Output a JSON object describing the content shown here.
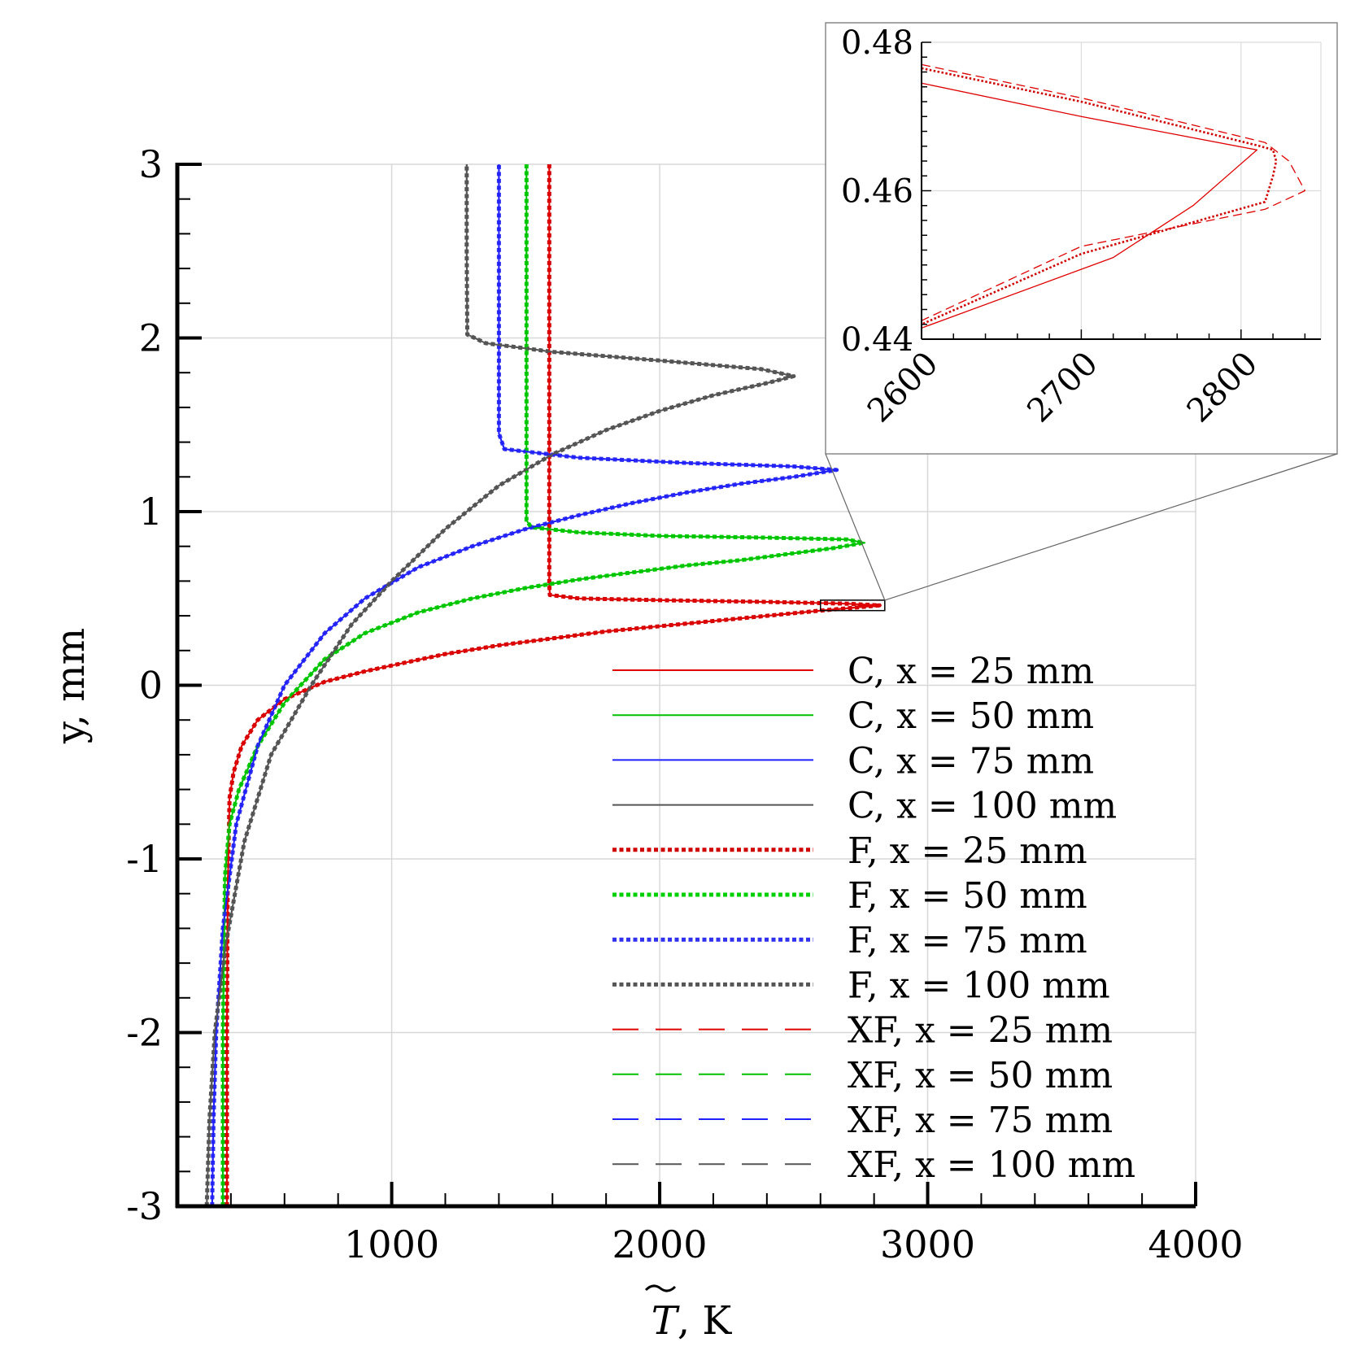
{
  "chart_data": [
    {
      "type": "line",
      "title": "",
      "xlabel": "T̃, K",
      "xlabel_symbol": "T",
      "xlabel_unit": ", K",
      "ylabel": "y, mm",
      "xlim": [
        200,
        4000
      ],
      "ylim": [
        -3,
        3
      ],
      "x_ticks": [
        1000,
        2000,
        3000,
        4000
      ],
      "x_tick_labels": [
        "1000",
        "2000",
        "3000",
        "4000"
      ],
      "y_ticks": [
        -3,
        -2,
        -1,
        0,
        1,
        2,
        3
      ],
      "y_tick_labels": [
        "-3",
        "-2",
        "-1",
        "0",
        "1",
        "2",
        "3"
      ],
      "grid": true,
      "legend_position": "bottom-right",
      "series": [
        {
          "name": "C, x = 25 mm",
          "model": "C",
          "color": "#e00000",
          "style": "solid",
          "x": [
            385,
            385,
            388,
            395,
            410,
            440,
            500,
            600,
            750,
            900,
            1050,
            1200,
            1400,
            1600,
            1800,
            2000,
            2200,
            2400,
            2600,
            2750,
            2820,
            2700,
            2400,
            2000,
            1700,
            1590,
            1588,
            1588,
            1588
          ],
          "y": [
            -3,
            -2,
            -1.2,
            -0.65,
            -0.5,
            -0.35,
            -0.2,
            -0.08,
            0.02,
            0.08,
            0.13,
            0.18,
            0.23,
            0.27,
            0.31,
            0.34,
            0.37,
            0.4,
            0.43,
            0.45,
            0.46,
            0.47,
            0.48,
            0.49,
            0.5,
            0.52,
            0.58,
            1.5,
            3
          ]
        },
        {
          "name": "C, x = 50 mm",
          "model": "C",
          "color": "#00c000",
          "style": "solid",
          "x": [
            370,
            370,
            378,
            395,
            430,
            500,
            600,
            750,
            900,
            1100,
            1300,
            1500,
            1700,
            1900,
            2100,
            2300,
            2500,
            2650,
            2760,
            2700,
            2400,
            2000,
            1700,
            1520,
            1503,
            1503,
            1503
          ],
          "y": [
            -3,
            -2,
            -1.1,
            -0.8,
            -0.6,
            -0.35,
            -0.1,
            0.15,
            0.3,
            0.42,
            0.5,
            0.56,
            0.61,
            0.65,
            0.69,
            0.72,
            0.76,
            0.79,
            0.82,
            0.84,
            0.85,
            0.86,
            0.88,
            0.91,
            0.95,
            2,
            3
          ]
        },
        {
          "name": "C, x = 75 mm",
          "model": "C",
          "color": "#2020ff",
          "style": "solid",
          "x": [
            330,
            335,
            345,
            370,
            420,
            500,
            600,
            750,
            900,
            1100,
            1300,
            1500,
            1700,
            1900,
            2100,
            2300,
            2500,
            2620,
            2660,
            2500,
            2100,
            1700,
            1420,
            1400,
            1400,
            1400
          ],
          "y": [
            -3,
            -2.5,
            -2,
            -1.4,
            -0.8,
            -0.35,
            0,
            0.3,
            0.5,
            0.68,
            0.8,
            0.9,
            0.98,
            1.05,
            1.11,
            1.16,
            1.2,
            1.23,
            1.24,
            1.26,
            1.28,
            1.31,
            1.36,
            1.45,
            2.5,
            3
          ]
        },
        {
          "name": "C, x = 100 mm",
          "model": "C",
          "color": "#555555",
          "style": "solid",
          "x": [
            310,
            320,
            340,
            380,
            450,
            550,
            700,
            850,
            1000,
            1200,
            1400,
            1600,
            1800,
            2000,
            2200,
            2400,
            2500,
            2380,
            2000,
            1600,
            1350,
            1282,
            1280,
            1280
          ],
          "y": [
            -3,
            -2.5,
            -2,
            -1.5,
            -0.9,
            -0.4,
            0,
            0.35,
            0.6,
            0.9,
            1.15,
            1.33,
            1.47,
            1.58,
            1.67,
            1.74,
            1.78,
            1.82,
            1.87,
            1.92,
            1.97,
            2.02,
            2.5,
            3
          ]
        },
        {
          "name": "F, x = 25 mm",
          "model": "F",
          "color": "#d00000",
          "style": "dotted",
          "x": [
            385,
            385,
            388,
            395,
            410,
            440,
            500,
            600,
            750,
            900,
            1050,
            1200,
            1400,
            1600,
            1800,
            2000,
            2200,
            2400,
            2600,
            2750,
            2820,
            2700,
            2400,
            2000,
            1700,
            1590,
            1588,
            1588,
            1588
          ],
          "y": [
            -3,
            -2,
            -1.2,
            -0.65,
            -0.5,
            -0.35,
            -0.2,
            -0.08,
            0.02,
            0.08,
            0.13,
            0.18,
            0.23,
            0.27,
            0.31,
            0.34,
            0.37,
            0.4,
            0.43,
            0.45,
            0.46,
            0.47,
            0.48,
            0.49,
            0.5,
            0.52,
            0.58,
            1.5,
            3
          ]
        },
        {
          "name": "F, x = 50 mm",
          "model": "F",
          "color": "#00d000",
          "style": "dotted",
          "x": [
            370,
            370,
            378,
            395,
            430,
            500,
            600,
            750,
            900,
            1100,
            1300,
            1500,
            1700,
            1900,
            2100,
            2300,
            2500,
            2650,
            2760,
            2700,
            2400,
            2000,
            1700,
            1520,
            1503,
            1503,
            1503
          ],
          "y": [
            -3,
            -2,
            -1.1,
            -0.8,
            -0.6,
            -0.35,
            -0.1,
            0.15,
            0.3,
            0.42,
            0.5,
            0.56,
            0.61,
            0.65,
            0.69,
            0.72,
            0.76,
            0.79,
            0.82,
            0.84,
            0.85,
            0.86,
            0.88,
            0.91,
            0.95,
            2,
            3
          ]
        },
        {
          "name": "F, x = 75 mm",
          "model": "F",
          "color": "#3030f0",
          "style": "dotted",
          "x": [
            330,
            335,
            345,
            370,
            420,
            500,
            600,
            750,
            900,
            1100,
            1300,
            1500,
            1700,
            1900,
            2100,
            2300,
            2500,
            2620,
            2660,
            2500,
            2100,
            1700,
            1420,
            1400,
            1400,
            1400
          ],
          "y": [
            -3,
            -2.5,
            -2,
            -1.4,
            -0.8,
            -0.35,
            0,
            0.3,
            0.5,
            0.68,
            0.8,
            0.9,
            0.98,
            1.05,
            1.11,
            1.16,
            1.2,
            1.23,
            1.24,
            1.26,
            1.28,
            1.31,
            1.36,
            1.45,
            2.5,
            3
          ]
        },
        {
          "name": "F, x = 100 mm",
          "model": "F",
          "color": "#555555",
          "style": "dotted",
          "x": [
            310,
            320,
            340,
            380,
            450,
            550,
            700,
            850,
            1000,
            1200,
            1400,
            1600,
            1800,
            2000,
            2200,
            2400,
            2500,
            2380,
            2000,
            1600,
            1350,
            1282,
            1280,
            1280
          ],
          "y": [
            -3,
            -2.5,
            -2,
            -1.5,
            -0.9,
            -0.4,
            0,
            0.35,
            0.6,
            0.9,
            1.15,
            1.33,
            1.47,
            1.58,
            1.67,
            1.74,
            1.78,
            1.82,
            1.87,
            1.92,
            1.97,
            2.02,
            2.5,
            3
          ]
        },
        {
          "name": "XF, x = 25 mm",
          "model": "XF",
          "color": "#e00000",
          "style": "dashed",
          "x": [
            385,
            385,
            388,
            395,
            410,
            440,
            500,
            600,
            750,
            900,
            1050,
            1200,
            1400,
            1600,
            1800,
            2000,
            2200,
            2400,
            2600,
            2750,
            2825,
            2700,
            2400,
            2000,
            1700,
            1590,
            1588,
            1588,
            1588
          ],
          "y": [
            -3,
            -2,
            -1.2,
            -0.65,
            -0.5,
            -0.35,
            -0.2,
            -0.08,
            0.02,
            0.08,
            0.13,
            0.18,
            0.23,
            0.27,
            0.31,
            0.34,
            0.37,
            0.4,
            0.43,
            0.45,
            0.46,
            0.47,
            0.48,
            0.49,
            0.5,
            0.52,
            0.58,
            1.5,
            3
          ]
        },
        {
          "name": "XF, x = 50 mm",
          "model": "XF",
          "color": "#00c000",
          "style": "dashed",
          "x": [
            370,
            370,
            378,
            395,
            430,
            500,
            600,
            750,
            900,
            1100,
            1300,
            1500,
            1700,
            1900,
            2100,
            2300,
            2500,
            2650,
            2765,
            2700,
            2400,
            2000,
            1700,
            1520,
            1503,
            1503,
            1503
          ],
          "y": [
            -3,
            -2,
            -1.1,
            -0.8,
            -0.6,
            -0.35,
            -0.1,
            0.15,
            0.3,
            0.42,
            0.5,
            0.56,
            0.61,
            0.65,
            0.69,
            0.72,
            0.76,
            0.79,
            0.82,
            0.84,
            0.85,
            0.86,
            0.88,
            0.91,
            0.95,
            2,
            3
          ]
        },
        {
          "name": "XF, x = 75 mm",
          "model": "XF",
          "color": "#2020ff",
          "style": "dashed",
          "x": [
            330,
            335,
            345,
            370,
            420,
            500,
            600,
            750,
            900,
            1100,
            1300,
            1500,
            1700,
            1900,
            2100,
            2300,
            2500,
            2620,
            2665,
            2500,
            2100,
            1700,
            1420,
            1400,
            1400,
            1400
          ],
          "y": [
            -3,
            -2.5,
            -2,
            -1.4,
            -0.8,
            -0.35,
            0,
            0.3,
            0.5,
            0.68,
            0.8,
            0.9,
            0.98,
            1.05,
            1.11,
            1.16,
            1.2,
            1.23,
            1.24,
            1.26,
            1.28,
            1.31,
            1.36,
            1.45,
            2.5,
            3
          ]
        },
        {
          "name": "XF, x = 100 mm",
          "model": "XF",
          "color": "#555555",
          "style": "dashed",
          "x": [
            310,
            320,
            340,
            380,
            450,
            550,
            700,
            850,
            1000,
            1200,
            1400,
            1600,
            1800,
            2000,
            2200,
            2400,
            2505,
            2380,
            2000,
            1600,
            1350,
            1282,
            1280,
            1280
          ],
          "y": [
            -3,
            -2.5,
            -2,
            -1.5,
            -0.9,
            -0.4,
            0,
            0.35,
            0.6,
            0.9,
            1.15,
            1.33,
            1.47,
            1.58,
            1.67,
            1.74,
            1.78,
            1.82,
            1.87,
            1.92,
            1.97,
            2.02,
            2.5,
            3
          ]
        }
      ]
    },
    {
      "type": "line",
      "title": "",
      "role": "inset zoom of x = 25 mm profile peak",
      "xlabel": "",
      "ylabel": "",
      "xlim": [
        2600,
        2850
      ],
      "ylim": [
        0.44,
        0.48
      ],
      "x_ticks": [
        2600,
        2700,
        2800
      ],
      "x_tick_labels": [
        "2600",
        "2700",
        "2800"
      ],
      "y_ticks": [
        0.44,
        0.46,
        0.48
      ],
      "y_tick_labels": [
        "0.44",
        "0.46",
        "0.48"
      ],
      "grid": true,
      "zoom_region": {
        "x": [
          2600,
          2840
        ],
        "y": [
          0.43,
          0.49
        ]
      },
      "series": [
        {
          "name": "C, x = 25 mm",
          "color": "#e00000",
          "style": "solid",
          "x": [
            2600,
            2700,
            2810,
            2770,
            2720,
            2600
          ],
          "y": [
            0.4745,
            0.47,
            0.4655,
            0.458,
            0.451,
            0.4415
          ]
        },
        {
          "name": "F, x = 25 mm",
          "color": "#d00000",
          "style": "dotted",
          "x": [
            2600,
            2700,
            2812,
            2820,
            2822,
            2820,
            2815,
            2700,
            2600
          ],
          "y": [
            0.4765,
            0.472,
            0.466,
            0.4655,
            0.464,
            0.462,
            0.4585,
            0.4515,
            0.442
          ]
        },
        {
          "name": "XF, x = 25 mm",
          "color": "#e00000",
          "style": "dashed",
          "x": [
            2600,
            2700,
            2815,
            2830,
            2840,
            2825,
            2815,
            2700,
            2600
          ],
          "y": [
            0.477,
            0.4725,
            0.4665,
            0.464,
            0.46,
            0.4585,
            0.4575,
            0.4525,
            0.4425
          ]
        }
      ]
    }
  ]
}
